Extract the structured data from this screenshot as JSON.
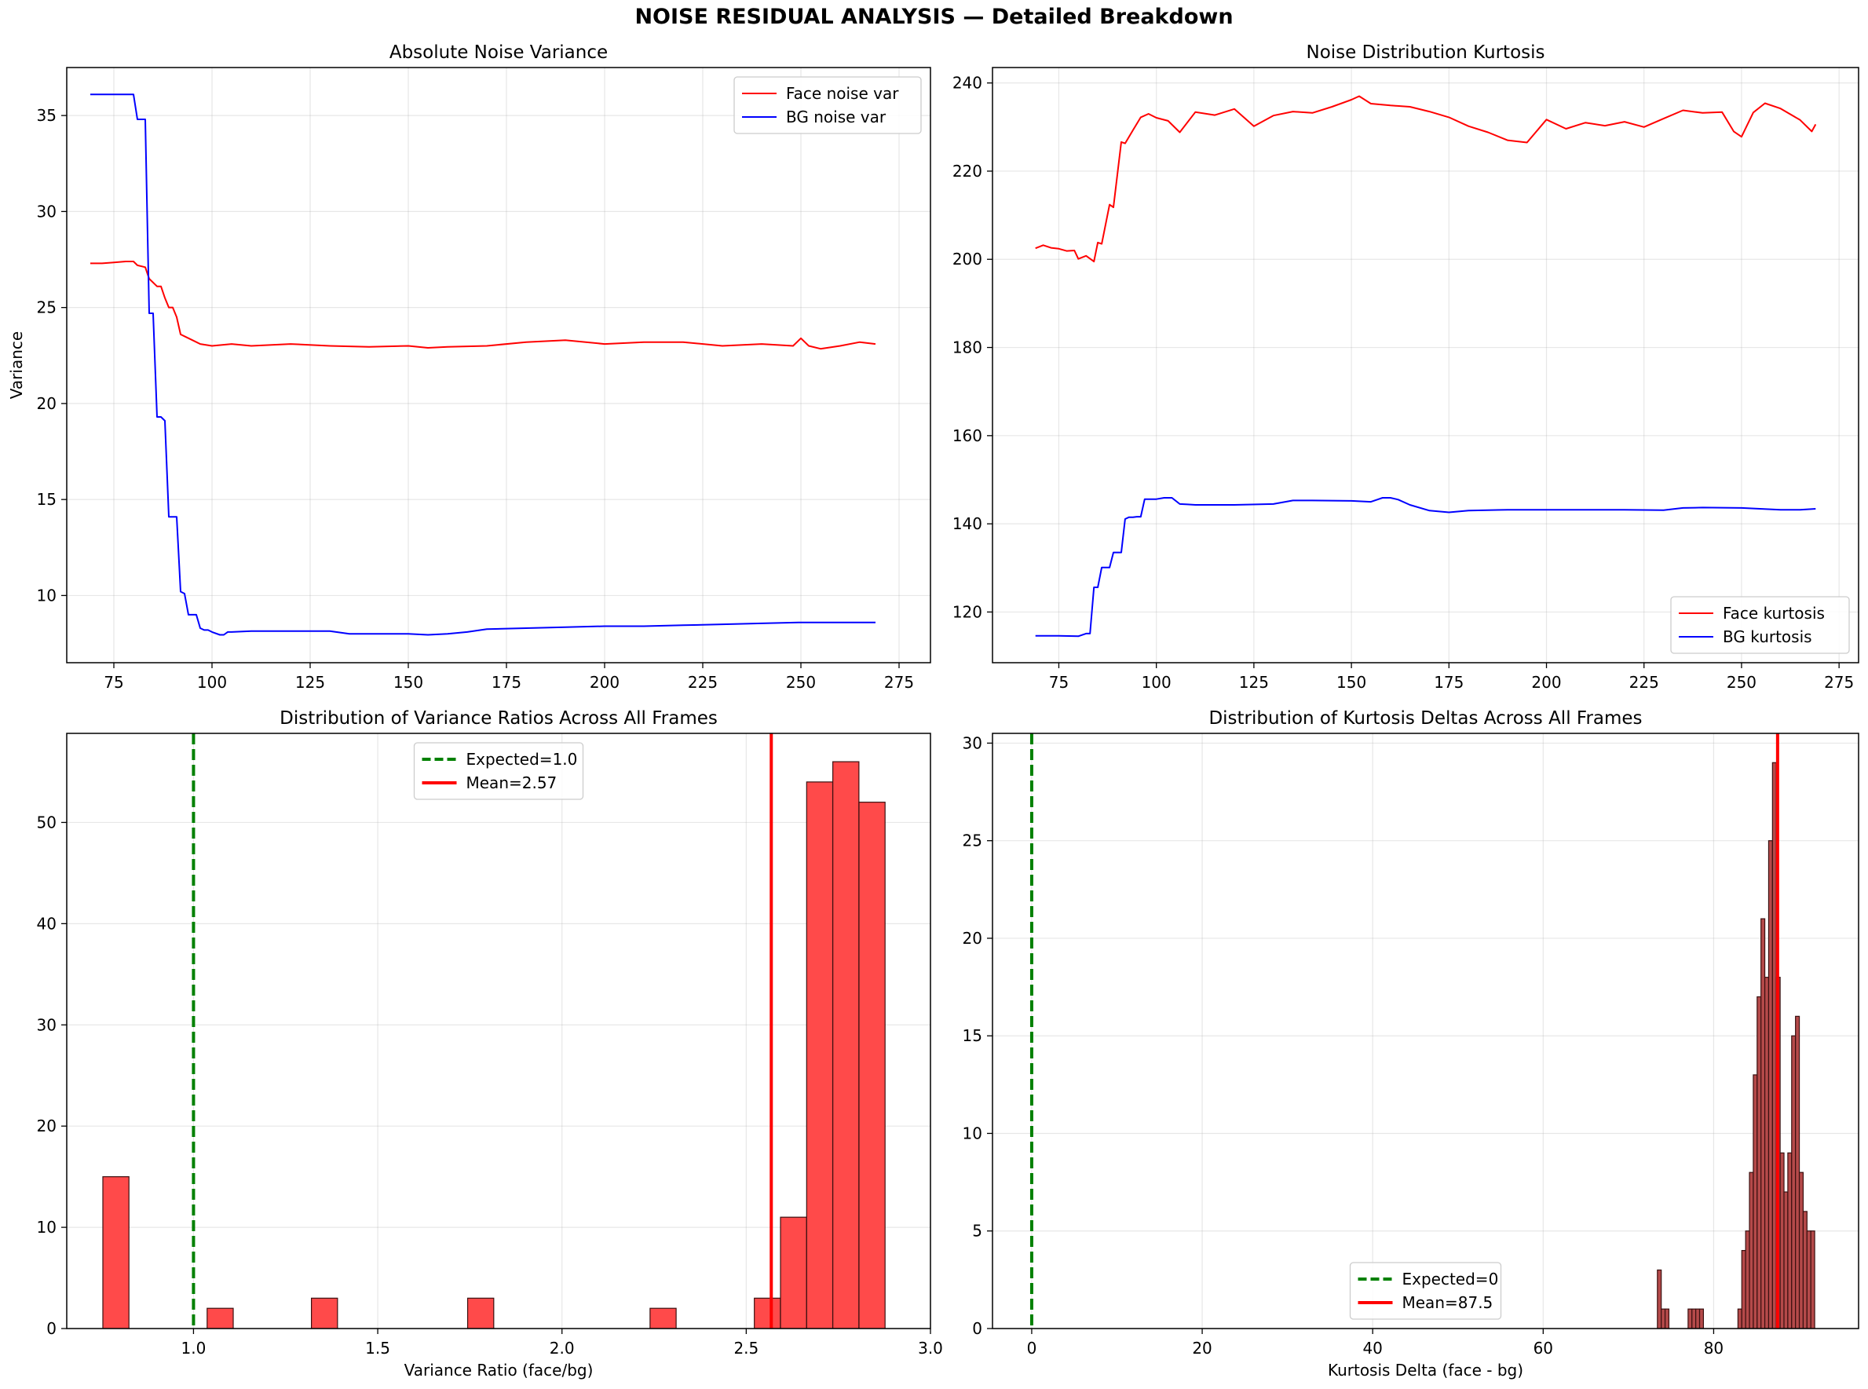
{
  "figure": {
    "suptitle": "NOISE RESIDUAL ANALYSIS — Detailed Breakdown"
  },
  "chart_data": [
    {
      "type": "line",
      "title": "Absolute Noise Variance",
      "xlabel": "",
      "ylabel": "Variance",
      "xlim": [
        63,
        283
      ],
      "ylim": [
        6.5,
        37.5
      ],
      "xticks": [
        75,
        100,
        125,
        150,
        175,
        200,
        225,
        250,
        275
      ],
      "yticks": [
        10,
        15,
        20,
        25,
        30,
        35
      ],
      "grid": true,
      "legend_position": "top-right",
      "series": [
        {
          "name": "Face noise var",
          "color": "#ff0000",
          "x": [
            69,
            72,
            75,
            78,
            80,
            81,
            83,
            84,
            86,
            87,
            88,
            89,
            90,
            91,
            92,
            93,
            95,
            97,
            100,
            105,
            110,
            120,
            130,
            140,
            150,
            155,
            160,
            170,
            180,
            190,
            200,
            210,
            220,
            230,
            240,
            248,
            250,
            252,
            255,
            260,
            265,
            269
          ],
          "y": [
            27.3,
            27.3,
            27.35,
            27.4,
            27.4,
            27.2,
            27.1,
            26.5,
            26.1,
            26.1,
            25.5,
            25.0,
            25.0,
            24.5,
            23.6,
            23.5,
            23.3,
            23.1,
            23.0,
            23.1,
            23.0,
            23.1,
            23.0,
            22.95,
            23.0,
            22.9,
            22.95,
            23.0,
            23.2,
            23.3,
            23.1,
            23.2,
            23.2,
            23.0,
            23.1,
            23.0,
            23.4,
            23.0,
            22.85,
            23.0,
            23.2,
            23.1
          ]
        },
        {
          "name": "BG noise var",
          "color": "#0000ff",
          "x": [
            69,
            75,
            80,
            81,
            83,
            84,
            85,
            86,
            87,
            88,
            89,
            90,
            91,
            92,
            93,
            94,
            95,
            96,
            97,
            98,
            99,
            100,
            102,
            103,
            104,
            105,
            110,
            120,
            130,
            135,
            140,
            150,
            155,
            160,
            165,
            170,
            180,
            190,
            200,
            210,
            220,
            230,
            240,
            250,
            260,
            265,
            269
          ],
          "y": [
            36.1,
            36.1,
            36.1,
            34.8,
            34.8,
            24.7,
            24.7,
            19.3,
            19.3,
            19.1,
            14.1,
            14.1,
            14.1,
            10.2,
            10.1,
            9.0,
            9.0,
            9.0,
            8.3,
            8.2,
            8.2,
            8.1,
            7.95,
            7.95,
            8.1,
            8.1,
            8.15,
            8.15,
            8.15,
            8.0,
            8.0,
            8.0,
            7.95,
            8.0,
            8.1,
            8.25,
            8.3,
            8.35,
            8.4,
            8.4,
            8.45,
            8.5,
            8.55,
            8.6,
            8.6,
            8.6,
            8.6
          ]
        }
      ]
    },
    {
      "type": "line",
      "title": "Noise Distribution Kurtosis",
      "xlabel": "",
      "ylabel": "",
      "xlim": [
        58,
        280
      ],
      "ylim": [
        108.5,
        243.5
      ],
      "xticks": [
        75,
        100,
        125,
        150,
        175,
        200,
        225,
        250,
        275
      ],
      "yticks": [
        120,
        140,
        160,
        180,
        200,
        220,
        240
      ],
      "grid": true,
      "legend_position": "bottom-right",
      "series": [
        {
          "name": "Face kurtosis",
          "color": "#ff0000",
          "x": [
            69,
            71,
            73,
            75,
            77,
            79,
            80,
            82,
            84,
            85,
            86,
            88,
            89,
            91,
            92,
            94,
            96,
            98,
            100,
            103,
            106,
            110,
            115,
            120,
            125,
            130,
            135,
            140,
            145,
            150,
            152,
            155,
            160,
            165,
            170,
            175,
            180,
            185,
            190,
            195,
            200,
            205,
            210,
            215,
            220,
            225,
            230,
            235,
            240,
            245,
            248,
            250,
            253,
            256,
            260,
            265,
            268,
            269
          ],
          "y": [
            202.5,
            203.2,
            202.6,
            202.4,
            201.9,
            202.0,
            200.1,
            200.8,
            199.5,
            203.8,
            203.5,
            212.4,
            211.8,
            226.6,
            226.3,
            229.3,
            232.2,
            233.0,
            232.1,
            231.4,
            228.8,
            233.4,
            232.7,
            234.1,
            230.2,
            232.6,
            233.5,
            233.2,
            234.6,
            236.2,
            237.0,
            235.3,
            234.9,
            234.6,
            233.5,
            232.2,
            230.2,
            228.8,
            227.0,
            226.5,
            231.7,
            229.6,
            231.0,
            230.3,
            231.2,
            230.0,
            231.9,
            233.8,
            233.2,
            233.4,
            229.0,
            227.8,
            233.3,
            235.4,
            234.2,
            231.6,
            229.0,
            230.6
          ]
        },
        {
          "name": "BG kurtosis",
          "color": "#0000ff",
          "x": [
            69,
            75,
            80,
            82,
            83,
            84,
            85,
            86,
            87,
            88,
            89,
            90,
            91,
            92,
            93,
            94,
            95,
            96,
            97,
            98,
            100,
            102,
            104,
            106,
            108,
            110,
            120,
            130,
            135,
            140,
            150,
            155,
            158,
            160,
            162,
            165,
            170,
            175,
            180,
            190,
            200,
            210,
            220,
            230,
            235,
            240,
            250,
            260,
            265,
            269
          ],
          "y": [
            114.6,
            114.6,
            114.5,
            115.1,
            115.1,
            125.6,
            125.6,
            130.1,
            130.1,
            130.1,
            133.5,
            133.5,
            133.5,
            141.1,
            141.5,
            141.5,
            141.6,
            141.6,
            145.6,
            145.6,
            145.6,
            145.9,
            145.9,
            144.5,
            144.4,
            144.3,
            144.3,
            144.5,
            145.3,
            145.3,
            145.2,
            145.0,
            145.9,
            145.9,
            145.5,
            144.3,
            143.0,
            142.6,
            143.0,
            143.2,
            143.2,
            143.2,
            143.2,
            143.1,
            143.6,
            143.7,
            143.6,
            143.2,
            143.2,
            143.4
          ]
        }
      ]
    },
    {
      "type": "bar",
      "title": "Distribution of Variance Ratios Across All Frames",
      "xlabel": "Variance Ratio (face/bg)",
      "ylabel": "",
      "xlim": [
        0.656,
        3.0
      ],
      "ylim": [
        0,
        58.8
      ],
      "xticks": [
        1.0,
        1.5,
        2.0,
        2.5,
        3.0
      ],
      "xtick_labels": [
        "1.0",
        "1.5",
        "2.0",
        "2.5",
        "3.0"
      ],
      "yticks": [
        0,
        10,
        20,
        30,
        40,
        50
      ],
      "grid": true,
      "legend_position": "top-center",
      "bar_color": "#ff4a4a",
      "bin_width": 0.0708,
      "bin_starts": [
        0.754,
        1.037,
        1.32,
        1.744,
        2.239,
        2.522,
        2.593,
        2.664,
        2.735,
        2.806
      ],
      "values": [
        15,
        2,
        3,
        3,
        2,
        3,
        11,
        54,
        56,
        52
      ],
      "reference_lines": [
        {
          "label": "Expected=1.0",
          "x": 1.0,
          "color": "#008000",
          "style": "dashed"
        },
        {
          "label": "Mean=2.57",
          "x": 2.568,
          "color": "#ff0000",
          "style": "solid"
        }
      ]
    },
    {
      "type": "bar",
      "title": "Distribution of Kurtosis Deltas Across All Frames",
      "xlabel": "Kurtosis Delta (face - bg)",
      "ylabel": "",
      "xlim": [
        -4.6,
        97.0
      ],
      "ylim": [
        0,
        30.5
      ],
      "xticks": [
        0,
        20,
        40,
        60,
        80
      ],
      "xtick_labels": [
        "0",
        "20",
        "40",
        "60",
        "80"
      ],
      "yticks": [
        0,
        5,
        10,
        15,
        20,
        25,
        30
      ],
      "grid": true,
      "legend_position": "bottom-center",
      "bar_color": "#b54a4a",
      "bin_width": 0.45,
      "bin_starts": [
        73.4,
        73.85,
        74.3,
        77.0,
        77.45,
        77.9,
        78.35,
        82.85,
        83.3,
        83.75,
        84.2,
        84.65,
        85.1,
        85.55,
        86.0,
        86.45,
        86.9,
        87.35,
        87.8,
        88.25,
        88.7,
        89.15,
        89.6,
        90.05,
        90.5,
        90.95,
        91.4,
        91.85
      ],
      "values": [
        3,
        1,
        1,
        1,
        1,
        1,
        1,
        1,
        4,
        5,
        8,
        13,
        17,
        21,
        18,
        25,
        29,
        18,
        9,
        7,
        9,
        15,
        16,
        8,
        6,
        5,
        5,
        0
      ],
      "reference_lines": [
        {
          "label": "Expected=0",
          "x": 0,
          "color": "#008000",
          "style": "dashed"
        },
        {
          "label": "Mean=87.5",
          "x": 87.5,
          "color": "#ff0000",
          "style": "solid"
        }
      ]
    }
  ]
}
